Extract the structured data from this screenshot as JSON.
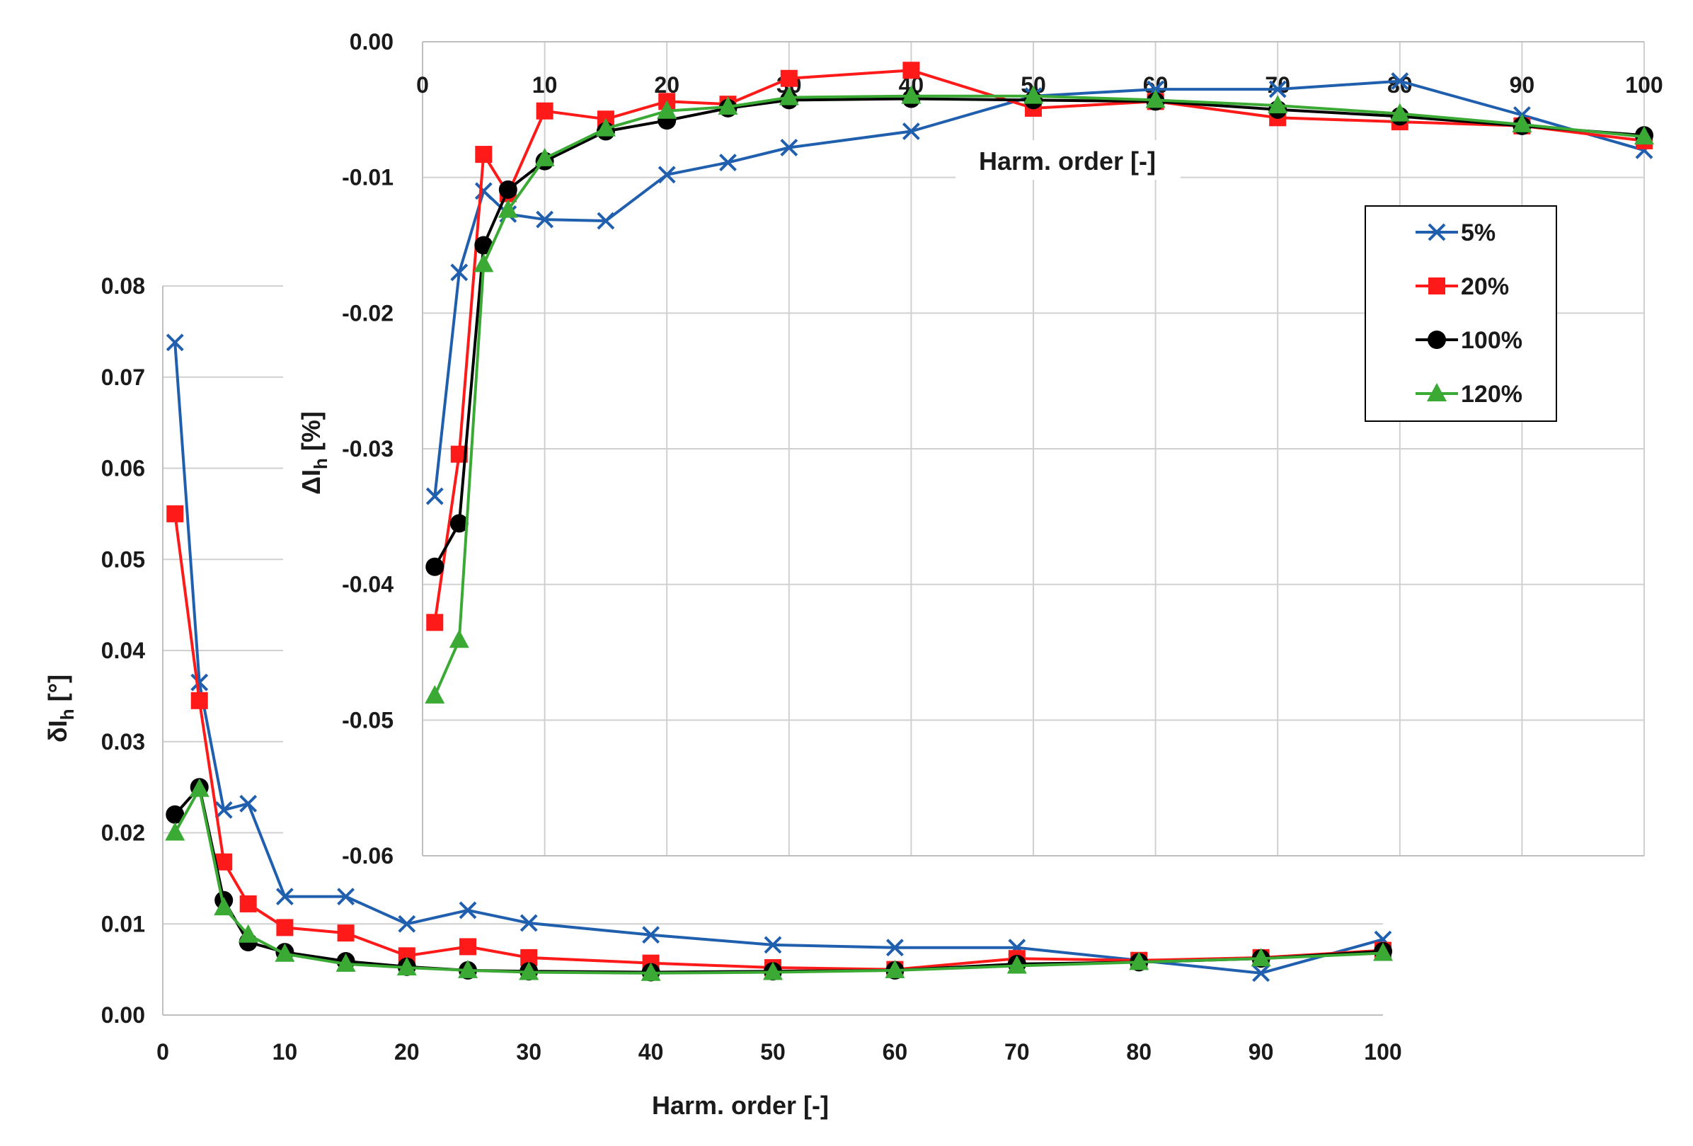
{
  "chart_data": [
    {
      "id": "main",
      "type": "line",
      "xlabel": "Harm. order [-]",
      "ylabel": "δI",
      "ylabel_sub": "h",
      "ylabel_unit": " [°]",
      "xlim": [
        0,
        100
      ],
      "ylim": [
        0,
        0.08
      ],
      "xticks": [
        0,
        10,
        20,
        30,
        40,
        50,
        60,
        70,
        80,
        90,
        100
      ],
      "yticks": [
        0.0,
        0.01,
        0.02,
        0.03,
        0.04,
        0.05,
        0.06,
        0.07,
        0.08
      ],
      "ytick_labels": [
        "0.00",
        "0.01",
        "0.02",
        "0.03",
        "0.04",
        "0.05",
        "0.06",
        "0.07",
        "0.08"
      ],
      "grid": "horizontal",
      "x": [
        1,
        3,
        5,
        7,
        10,
        15,
        20,
        25,
        30,
        40,
        50,
        60,
        70,
        80,
        90,
        100
      ],
      "series": [
        {
          "name": "5%",
          "values": [
            0.0738,
            0.0365,
            0.0225,
            0.0232,
            0.013,
            0.013,
            0.01,
            0.0115,
            0.0101,
            0.0088,
            0.0077,
            0.0074,
            0.0074,
            0.006,
            0.0046,
            0.0083
          ]
        },
        {
          "name": "20%",
          "values": [
            0.055,
            0.0345,
            0.0168,
            0.0122,
            0.0096,
            0.009,
            0.0065,
            0.0075,
            0.0063,
            0.0057,
            0.0052,
            0.005,
            0.0062,
            0.006,
            0.0063,
            0.0071
          ]
        },
        {
          "name": "100%",
          "values": [
            0.022,
            0.025,
            0.0126,
            0.008,
            0.0069,
            0.0059,
            0.0053,
            0.0049,
            0.0048,
            0.0047,
            0.0048,
            0.0049,
            0.0056,
            0.0058,
            0.0062,
            0.007
          ]
        },
        {
          "name": "120%",
          "values": [
            0.02,
            0.0248,
            0.0118,
            0.0088,
            0.0067,
            0.0056,
            0.0052,
            0.0049,
            0.0047,
            0.0046,
            0.0047,
            0.0049,
            0.0054,
            0.0058,
            0.0062,
            0.0068
          ]
        }
      ]
    },
    {
      "id": "inset",
      "type": "line",
      "xlabel": "Harm. order [-]",
      "ylabel": "ΔI",
      "ylabel_sub": "h",
      "ylabel_unit": " [%]",
      "xlim": [
        0,
        100
      ],
      "ylim": [
        -0.06,
        0.0
      ],
      "xticks": [
        0,
        10,
        20,
        30,
        40,
        50,
        60,
        70,
        80,
        90,
        100
      ],
      "yticks": [
        0.0,
        -0.01,
        -0.02,
        -0.03,
        -0.04,
        -0.05,
        -0.06
      ],
      "ytick_labels": [
        "0.00",
        "-0.01",
        "-0.02",
        "-0.03",
        "-0.04",
        "-0.05",
        "-0.06"
      ],
      "grid": "both",
      "legend": "top-right",
      "x": [
        1,
        3,
        5,
        7,
        10,
        15,
        20,
        25,
        30,
        40,
        50,
        60,
        70,
        80,
        90,
        100
      ],
      "series": [
        {
          "name": "5%",
          "values": [
            -0.0335,
            -0.017,
            -0.011,
            -0.0127,
            -0.0131,
            -0.0132,
            -0.0098,
            -0.0089,
            -0.0078,
            -0.0066,
            -0.004,
            -0.0035,
            -0.0035,
            -0.0029,
            -0.0054,
            -0.008
          ]
        },
        {
          "name": "20%",
          "values": [
            -0.0428,
            -0.0304,
            -0.0083,
            -0.0112,
            -0.0051,
            -0.0057,
            -0.0044,
            -0.0046,
            -0.0027,
            -0.0021,
            -0.0049,
            -0.0044,
            -0.0056,
            -0.0059,
            -0.0062,
            -0.0073
          ]
        },
        {
          "name": "100%",
          "values": [
            -0.0387,
            -0.0355,
            -0.015,
            -0.0109,
            -0.0088,
            -0.0066,
            -0.0058,
            -0.0049,
            -0.0043,
            -0.0042,
            -0.0043,
            -0.0044,
            -0.005,
            -0.0055,
            -0.0062,
            -0.0069
          ]
        },
        {
          "name": "120%",
          "values": [
            -0.0482,
            -0.0441,
            -0.0164,
            -0.0124,
            -0.0086,
            -0.0064,
            -0.0051,
            -0.0048,
            -0.0041,
            -0.004,
            -0.004,
            -0.0043,
            -0.0047,
            -0.0053,
            -0.0061,
            -0.007
          ]
        }
      ]
    }
  ],
  "legend": [
    {
      "name": "5%",
      "color": "#1f5fae",
      "marker": "x"
    },
    {
      "name": "20%",
      "color": "#ff1a1a",
      "marker": "square"
    },
    {
      "name": "100%",
      "color": "#000000",
      "marker": "circle"
    },
    {
      "name": "120%",
      "color": "#3aaa35",
      "marker": "triangle"
    }
  ]
}
